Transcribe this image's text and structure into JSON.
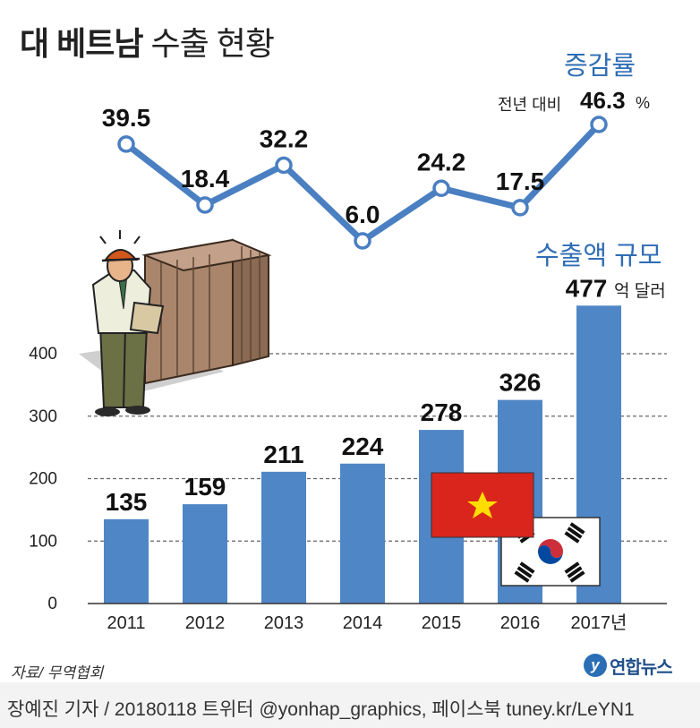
{
  "title": {
    "bold": "대 베트남",
    "light": "수출 현황"
  },
  "growth_header": {
    "label": "증감률",
    "note_prefix": "전년 대비",
    "note_value": "46.3",
    "note_unit": "%"
  },
  "export_header": {
    "label": "수출액 규모",
    "unit": "억 달러"
  },
  "source": "자료/ 무역협회",
  "credit": "장예진 기자 / 20180118 트위터 @yonhap_graphics, 페이스북 tuney.kr/LeYN1",
  "logo": {
    "text": "연합뉴스"
  },
  "colors": {
    "bar": "#4f86c6",
    "line": "#4a7fc1",
    "title_accent": "#2f6db5",
    "grid": "#666666"
  },
  "chart_data": [
    {
      "type": "bar",
      "categories": [
        "2011",
        "2012",
        "2013",
        "2014",
        "2015",
        "2016",
        "2017년"
      ],
      "values": [
        135,
        159,
        211,
        224,
        278,
        326,
        477
      ],
      "ylim": [
        0,
        477
      ],
      "yticks": [
        0,
        100,
        200,
        300,
        400
      ],
      "grid": true
    },
    {
      "type": "line",
      "categories": [
        "2011",
        "2012",
        "2013",
        "2014",
        "2015",
        "2016",
        "2017년"
      ],
      "values": [
        39.5,
        18.4,
        32.2,
        6.0,
        24.2,
        17.5,
        46.3
      ],
      "labels": [
        "39.5",
        "18.4",
        "32.2",
        "6.0",
        "24.2",
        "17.5",
        "46.3"
      ]
    }
  ]
}
